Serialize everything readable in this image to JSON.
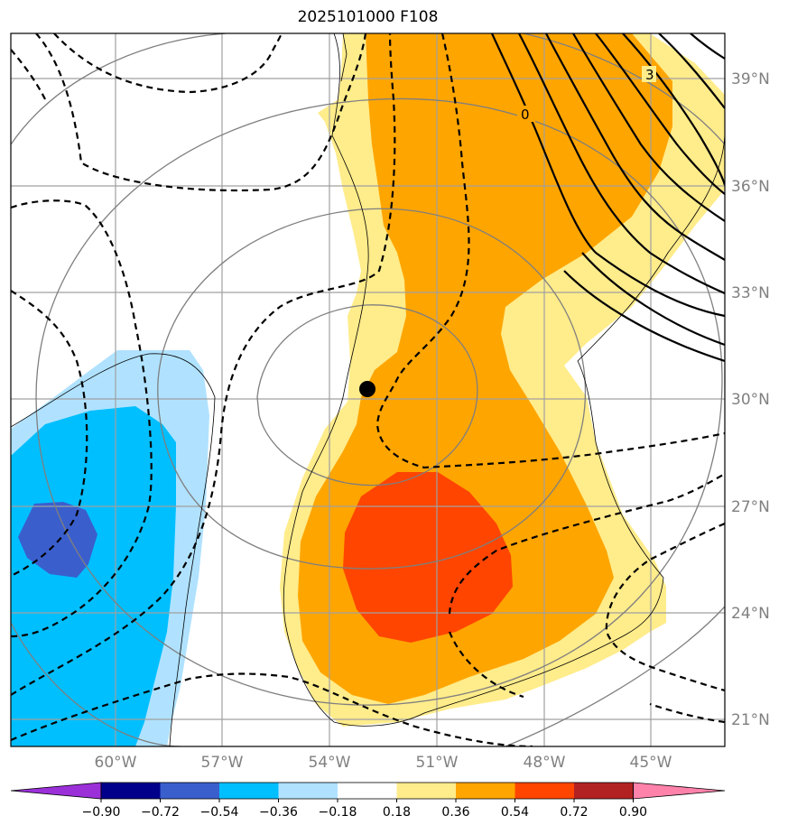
{
  "title": "2025101000 F108",
  "lat_labels": [
    "39°N",
    "36°N",
    "33°N",
    "30°N",
    "27°N",
    "24°N",
    "21°N"
  ],
  "lon_labels": [
    "60°W",
    "57°W",
    "54°W",
    "51°W",
    "48°W",
    "45°W"
  ],
  "colorbar": {
    "ticks": [
      "−0.90",
      "−0.72",
      "−0.54",
      "−0.36",
      "−0.18",
      "0.18",
      "0.36",
      "0.54",
      "0.72",
      "0.90"
    ],
    "colors": [
      "#9b30d9",
      "#00008b",
      "#3a5fcd",
      "#00bfff",
      "#b0e2ff",
      "#ffffff",
      "#ffec8b",
      "#ffa500",
      "#ff4500",
      "#b22222",
      "#ff82ab"
    ]
  },
  "contour_labels": [
    "0",
    "3"
  ],
  "marker": "storm-center"
}
